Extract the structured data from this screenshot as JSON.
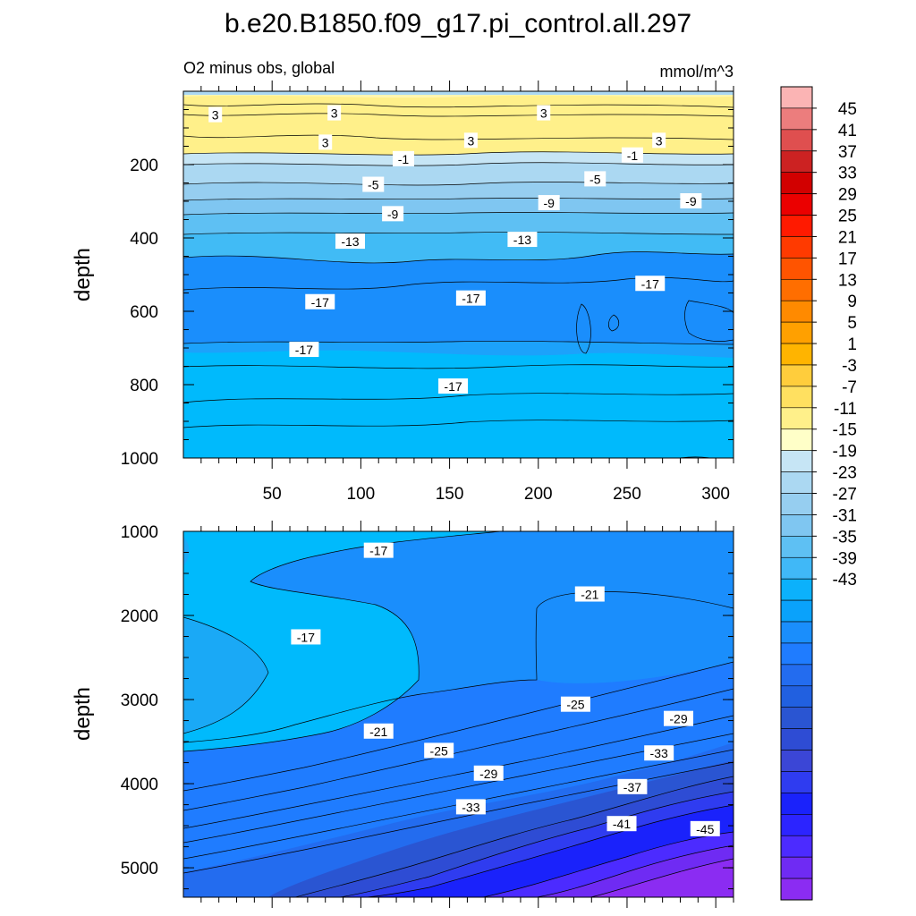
{
  "chart_data": [
    {
      "type": "contour",
      "title": "b.e20.B1850.f09_g17.pi_control.all.297",
      "subtitle_left": "O2 minus obs, global",
      "subtitle_right": "mmol/m^3",
      "xlabel": "",
      "ylabel": "depth",
      "xlim": [
        0,
        310
      ],
      "ylim": [
        1000,
        0
      ],
      "x_ticks": [
        50,
        100,
        150,
        200,
        250,
        300
      ],
      "y_ticks": [
        200,
        400,
        600,
        800,
        1000
      ],
      "contour_labels": [
        {
          "text": "3",
          "x": 18,
          "y": 65
        },
        {
          "text": "3",
          "x": 85,
          "y": 60
        },
        {
          "text": "3",
          "x": 80,
          "y": 140
        },
        {
          "text": "3",
          "x": 162,
          "y": 135
        },
        {
          "text": "3",
          "x": 203,
          "y": 60
        },
        {
          "text": "3",
          "x": 268,
          "y": 135
        },
        {
          "text": "-1",
          "x": 124,
          "y": 185
        },
        {
          "text": "-1",
          "x": 253,
          "y": 175
        },
        {
          "text": "-5",
          "x": 107,
          "y": 255
        },
        {
          "text": "-5",
          "x": 232,
          "y": 240
        },
        {
          "text": "-9",
          "x": 118,
          "y": 335
        },
        {
          "text": "-9",
          "x": 206,
          "y": 305
        },
        {
          "text": "-9",
          "x": 286,
          "y": 300
        },
        {
          "text": "-13",
          "x": 94,
          "y": 410
        },
        {
          "text": "-13",
          "x": 191,
          "y": 405
        },
        {
          "text": "-17",
          "x": 77,
          "y": 575
        },
        {
          "text": "-17",
          "x": 162,
          "y": 565
        },
        {
          "text": "-17",
          "x": 263,
          "y": 525
        },
        {
          "text": "-17",
          "x": 68,
          "y": 705
        },
        {
          "text": "-17",
          "x": 152,
          "y": 805
        }
      ]
    },
    {
      "type": "contour",
      "xlabel": "",
      "ylabel": "depth",
      "xlim": [
        0,
        310
      ],
      "ylim": [
        5350,
        1000
      ],
      "y_ticks": [
        1000,
        2000,
        3000,
        4000,
        5000
      ],
      "contour_labels": [
        {
          "text": "-17",
          "x": 110,
          "y": 1230
        },
        {
          "text": "-21",
          "x": 229,
          "y": 1750
        },
        {
          "text": "-17",
          "x": 69,
          "y": 2260
        },
        {
          "text": "-21",
          "x": 110,
          "y": 3380
        },
        {
          "text": "-25",
          "x": 221,
          "y": 3060
        },
        {
          "text": "-25",
          "x": 144,
          "y": 3610
        },
        {
          "text": "-29",
          "x": 172,
          "y": 3880
        },
        {
          "text": "-29",
          "x": 279,
          "y": 3230
        },
        {
          "text": "-33",
          "x": 268,
          "y": 3640
        },
        {
          "text": "-33",
          "x": 162,
          "y": 4280
        },
        {
          "text": "-37",
          "x": 253,
          "y": 4040
        },
        {
          "text": "-41",
          "x": 247,
          "y": 4480
        },
        {
          "text": "-45",
          "x": 294,
          "y": 4540
        }
      ]
    }
  ],
  "colorbar": {
    "labels": [
      "45",
      "41",
      "37",
      "33",
      "29",
      "25",
      "21",
      "17",
      "13",
      "9",
      "5",
      "1",
      "-3",
      "-7",
      "-11",
      "-15",
      "-19",
      "-23",
      "-27",
      "-31",
      "-35",
      "-39",
      "-43"
    ],
    "colors": [
      "#fbb4b4",
      "#ec7d7d",
      "#df4f4f",
      "#cc2222",
      "#d20000",
      "#eb0000",
      "#ff1a00",
      "#ff3a00",
      "#ff5400",
      "#ff6e00",
      "#ff8a00",
      "#ffa000",
      "#ffb400",
      "#ffcd3c",
      "#ffe060",
      "#fff08a",
      "#ffffc8",
      "#c6e5f5",
      "#abd8f2",
      "#96cef0",
      "#7fc6f1",
      "#5ec0f3",
      "#40b8f7",
      "#0cb1fb",
      "#0aa2fb",
      "#1a8efc",
      "#1f7cff",
      "#236cef",
      "#2160e0",
      "#2a55d2",
      "#2e4cd4",
      "#3b46d6",
      "#2f3cf0",
      "#1a22fb",
      "#2c24ff",
      "#4c2bff",
      "#6f2bf3",
      "#8b2cf2"
    ]
  }
}
